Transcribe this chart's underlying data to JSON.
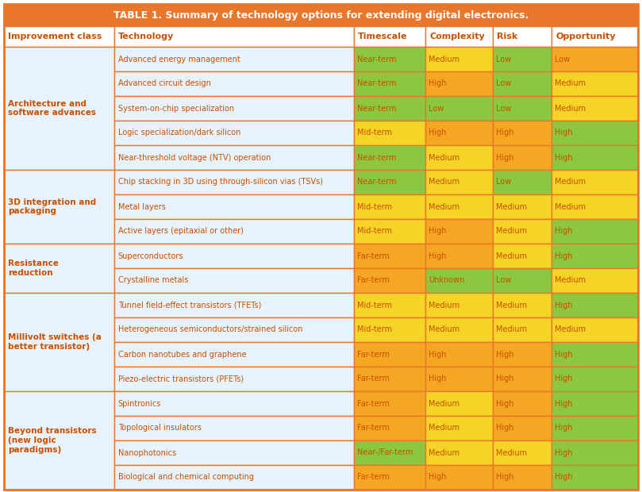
{
  "title": "TABLE 1. Summary of technology options for extending digital electronics.",
  "title_bg": "#E8762B",
  "title_text_color": "white",
  "header_row": [
    "Improvement class",
    "Technology",
    "Timescale",
    "Complexity",
    "Risk",
    "Opportunity"
  ],
  "header_text_color": "#C85000",
  "header_bg": "#FFFFFF",
  "row_bg_left": "#E8F2FA",
  "row_border": "#E8762B",
  "outer_border": "#E8762B",
  "rows": [
    {
      "group": "Architecture and\nsoftware advances",
      "technology": "Advanced energy management",
      "timescale": "Near-term",
      "timescale_color": "#8DC63F",
      "complexity": "Medium",
      "complexity_color": "#F5D327",
      "risk": "Low",
      "risk_color": "#8DC63F",
      "opportunity": "Low",
      "opportunity_color": "#F5A623"
    },
    {
      "group": "",
      "technology": "Advanced circuit design",
      "timescale": "Near-term",
      "timescale_color": "#8DC63F",
      "complexity": "High",
      "complexity_color": "#F5A623",
      "risk": "Low",
      "risk_color": "#8DC63F",
      "opportunity": "Medium",
      "opportunity_color": "#F5D327"
    },
    {
      "group": "",
      "technology": "System-on-chip specialization",
      "timescale": "Near-term",
      "timescale_color": "#8DC63F",
      "complexity": "Low",
      "complexity_color": "#8DC63F",
      "risk": "Low",
      "risk_color": "#8DC63F",
      "opportunity": "Medium",
      "opportunity_color": "#F5D327"
    },
    {
      "group": "",
      "technology": "Logic specialization/dark silicon",
      "timescale": "Mid-term",
      "timescale_color": "#F5D327",
      "complexity": "High",
      "complexity_color": "#F5A623",
      "risk": "High",
      "risk_color": "#F5A623",
      "opportunity": "High",
      "opportunity_color": "#8DC63F"
    },
    {
      "group": "",
      "technology": "Near-threshold voltage (NTV) operation",
      "timescale": "Near-term",
      "timescale_color": "#8DC63F",
      "complexity": "Medium",
      "complexity_color": "#F5D327",
      "risk": "High",
      "risk_color": "#F5A623",
      "opportunity": "High",
      "opportunity_color": "#8DC63F"
    },
    {
      "group": "3D integration and\npackaging",
      "technology": "Chip stacking in 3D using through-silicon vias (TSVs)",
      "timescale": "Near-term",
      "timescale_color": "#8DC63F",
      "complexity": "Medium",
      "complexity_color": "#F5D327",
      "risk": "Low",
      "risk_color": "#8DC63F",
      "opportunity": "Medium",
      "opportunity_color": "#F5D327"
    },
    {
      "group": "",
      "technology": "Metal layers",
      "timescale": "Mid-term",
      "timescale_color": "#F5D327",
      "complexity": "Medium",
      "complexity_color": "#F5D327",
      "risk": "Medium",
      "risk_color": "#F5D327",
      "opportunity": "Medium",
      "opportunity_color": "#F5D327"
    },
    {
      "group": "",
      "technology": "Active layers (epitaxial or other)",
      "timescale": "Mid-term",
      "timescale_color": "#F5D327",
      "complexity": "High",
      "complexity_color": "#F5A623",
      "risk": "Medium",
      "risk_color": "#F5D327",
      "opportunity": "High",
      "opportunity_color": "#8DC63F"
    },
    {
      "group": "Resistance\nreduction",
      "technology": "Superconductors",
      "timescale": "Far-term",
      "timescale_color": "#F5A623",
      "complexity": "High",
      "complexity_color": "#F5A623",
      "risk": "Medium",
      "risk_color": "#F5D327",
      "opportunity": "High",
      "opportunity_color": "#8DC63F"
    },
    {
      "group": "",
      "technology": "Crystalline metals",
      "timescale": "Far-term",
      "timescale_color": "#F5A623",
      "complexity": "Unknown",
      "complexity_color": "#8DC63F",
      "risk": "Low",
      "risk_color": "#8DC63F",
      "opportunity": "Medium",
      "opportunity_color": "#F5D327"
    },
    {
      "group": "Millivolt switches (a\nbetter transistor)",
      "technology": "Tunnel field-effect transistors (TFETs)",
      "timescale": "Mid-term",
      "timescale_color": "#F5D327",
      "complexity": "Medium",
      "complexity_color": "#F5D327",
      "risk": "Medium",
      "risk_color": "#F5D327",
      "opportunity": "High",
      "opportunity_color": "#8DC63F"
    },
    {
      "group": "",
      "technology": "Heterogeneous semiconductors/strained silicon",
      "timescale": "Mid-term",
      "timescale_color": "#F5D327",
      "complexity": "Medium",
      "complexity_color": "#F5D327",
      "risk": "Medium",
      "risk_color": "#F5D327",
      "opportunity": "Medium",
      "opportunity_color": "#F5D327"
    },
    {
      "group": "",
      "technology": "Carbon nanotubes and graphene",
      "timescale": "Far-term",
      "timescale_color": "#F5A623",
      "complexity": "High",
      "complexity_color": "#F5A623",
      "risk": "High",
      "risk_color": "#F5A623",
      "opportunity": "High",
      "opportunity_color": "#8DC63F"
    },
    {
      "group": "",
      "technology": "Piezo-electric transistors (PFETs)",
      "timescale": "Far-term",
      "timescale_color": "#F5A623",
      "complexity": "High",
      "complexity_color": "#F5A623",
      "risk": "High",
      "risk_color": "#F5A623",
      "opportunity": "High",
      "opportunity_color": "#8DC63F"
    },
    {
      "group": "Beyond transistors\n(new logic\nparadigms)",
      "technology": "Spintronics",
      "timescale": "Far-term",
      "timescale_color": "#F5A623",
      "complexity": "Medium",
      "complexity_color": "#F5D327",
      "risk": "High",
      "risk_color": "#F5A623",
      "opportunity": "High",
      "opportunity_color": "#8DC63F"
    },
    {
      "group": "",
      "technology": "Topological insulators",
      "timescale": "Far-term",
      "timescale_color": "#F5A623",
      "complexity": "Medium",
      "complexity_color": "#F5D327",
      "risk": "High",
      "risk_color": "#F5A623",
      "opportunity": "High",
      "opportunity_color": "#8DC63F"
    },
    {
      "group": "",
      "technology": "Nanophotonics",
      "timescale": "Near-/Far-term",
      "timescale_color": "#8DC63F",
      "complexity": "Medium",
      "complexity_color": "#F5D327",
      "risk": "Medium",
      "risk_color": "#F5D327",
      "opportunity": "High",
      "opportunity_color": "#8DC63F"
    },
    {
      "group": "",
      "technology": "Biological and chemical computing",
      "timescale": "Far-term",
      "timescale_color": "#F5A623",
      "complexity": "High",
      "complexity_color": "#F5A623",
      "risk": "High",
      "risk_color": "#F5A623",
      "opportunity": "High",
      "opportunity_color": "#8DC63F"
    }
  ],
  "group_spans": [
    {
      "group": "Architecture and\nsoftware advances",
      "start": 0,
      "end": 4
    },
    {
      "group": "3D integration and\npackaging",
      "start": 5,
      "end": 7
    },
    {
      "group": "Resistance\nreduction",
      "start": 8,
      "end": 9
    },
    {
      "group": "Millivolt switches (a\nbetter transistor)",
      "start": 10,
      "end": 13
    },
    {
      "group": "Beyond transistors\n(new logic\nparadigms)",
      "start": 14,
      "end": 17
    }
  ]
}
